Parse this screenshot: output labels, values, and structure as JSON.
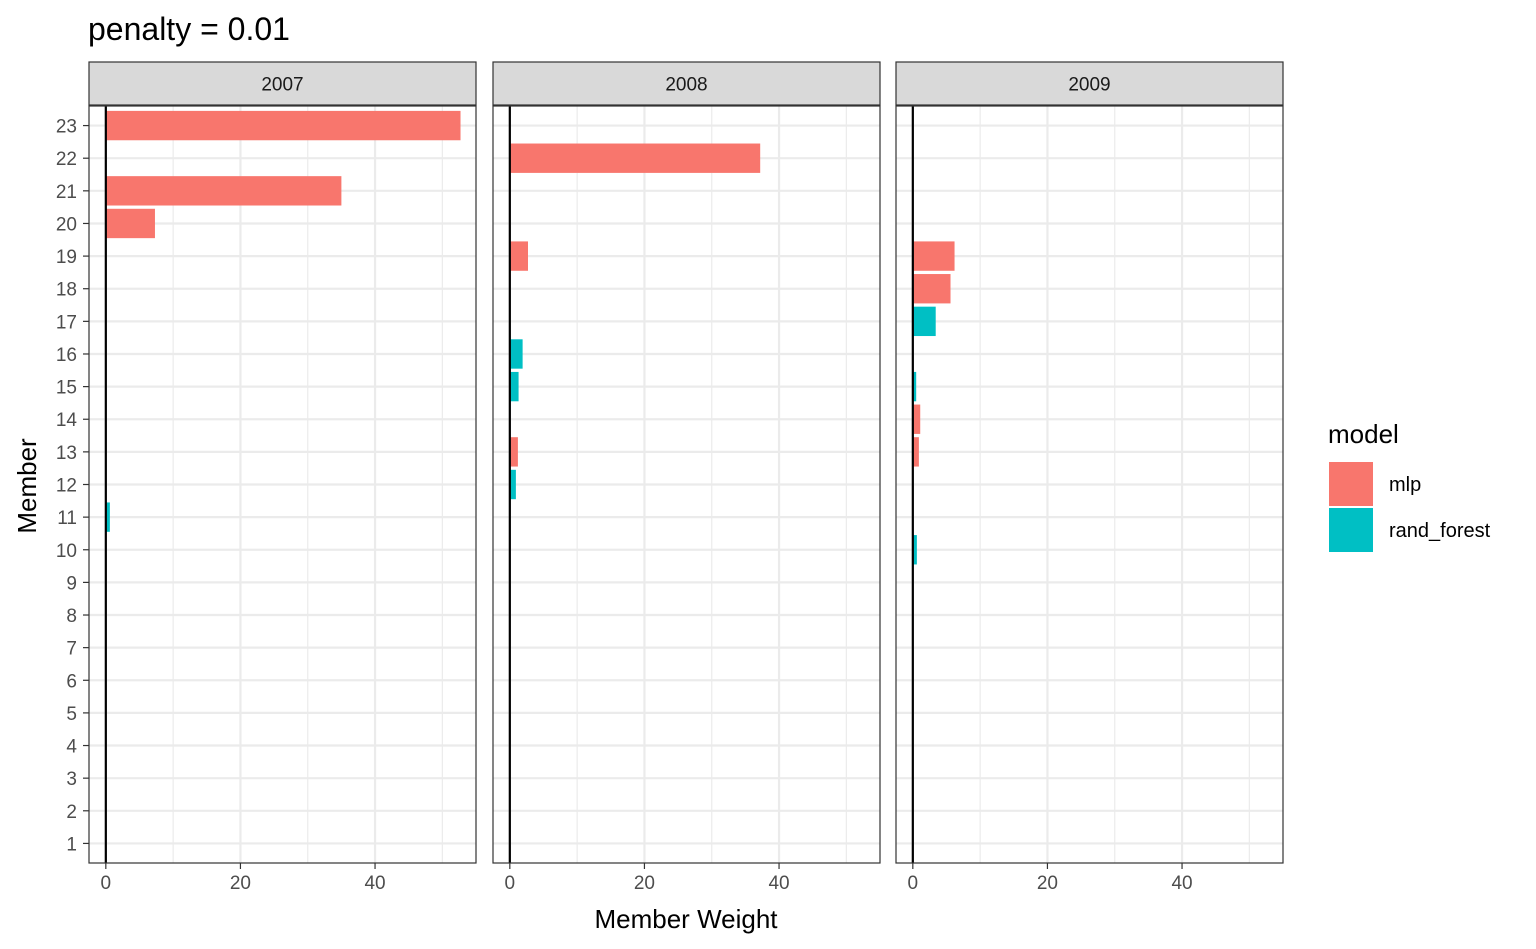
{
  "chart_data": {
    "type": "bar",
    "orientation": "horizontal",
    "title": "penalty = 0.01",
    "xlabel": "Member Weight",
    "ylabel": "Member",
    "xlim": [
      -2.5,
      55
    ],
    "x_ticks": [
      0,
      20,
      40
    ],
    "categories": [
      "1",
      "2",
      "3",
      "4",
      "5",
      "6",
      "7",
      "8",
      "9",
      "10",
      "11",
      "12",
      "13",
      "14",
      "15",
      "16",
      "17",
      "18",
      "19",
      "20",
      "21",
      "22",
      "23"
    ],
    "grid": true,
    "facets": [
      "2007",
      "2008",
      "2009"
    ],
    "legend": {
      "title": "model",
      "position": "right",
      "entries": [
        {
          "name": "mlp",
          "color": "#F8766D"
        },
        {
          "name": "rand_forest",
          "color": "#00BFC4"
        }
      ]
    },
    "series": [
      {
        "facet": "2007",
        "bars": [
          {
            "member": "23",
            "value": 52.7,
            "model": "mlp"
          },
          {
            "member": "21",
            "value": 35.0,
            "model": "mlp"
          },
          {
            "member": "20",
            "value": 7.3,
            "model": "mlp"
          },
          {
            "member": "11",
            "value": 0.6,
            "model": "rand_forest"
          }
        ]
      },
      {
        "facet": "2008",
        "bars": [
          {
            "member": "22",
            "value": 37.2,
            "model": "mlp"
          },
          {
            "member": "19",
            "value": 2.7,
            "model": "mlp"
          },
          {
            "member": "16",
            "value": 1.9,
            "model": "rand_forest"
          },
          {
            "member": "15",
            "value": 1.3,
            "model": "rand_forest"
          },
          {
            "member": "13",
            "value": 1.2,
            "model": "mlp"
          },
          {
            "member": "12",
            "value": 0.9,
            "model": "rand_forest"
          }
        ]
      },
      {
        "facet": "2009",
        "bars": [
          {
            "member": "19",
            "value": 6.2,
            "model": "mlp"
          },
          {
            "member": "18",
            "value": 5.6,
            "model": "mlp"
          },
          {
            "member": "17",
            "value": 3.4,
            "model": "rand_forest"
          },
          {
            "member": "15",
            "value": 0.5,
            "model": "rand_forest"
          },
          {
            "member": "14",
            "value": 1.1,
            "model": "mlp"
          },
          {
            "member": "13",
            "value": 0.9,
            "model": "mlp"
          },
          {
            "member": "10",
            "value": 0.6,
            "model": "rand_forest"
          }
        ]
      }
    ]
  }
}
